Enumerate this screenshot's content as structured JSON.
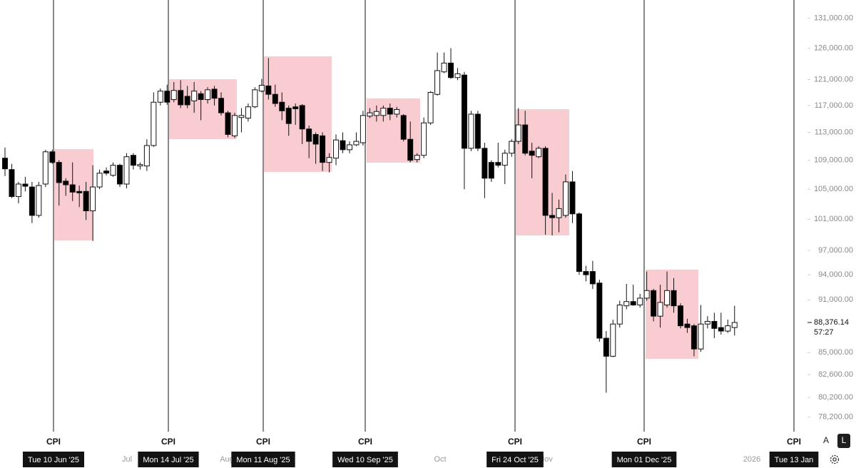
{
  "chart_data": {
    "type": "candlestick",
    "log_scale": true,
    "up_color": "#ffffff",
    "down_color": "#000000",
    "box_color": "#f7b6be",
    "categories": [
      null,
      null,
      null,
      null,
      null,
      null,
      null,
      null,
      null,
      null,
      null,
      null,
      null,
      null,
      null,
      null,
      null,
      null,
      null,
      null,
      null,
      null,
      null,
      null,
      null,
      null,
      null,
      null,
      null,
      null,
      null,
      null,
      null,
      null,
      null,
      null,
      null,
      null,
      null,
      null,
      null,
      null,
      null,
      null,
      null,
      null,
      null,
      null,
      null,
      null,
      null,
      null,
      null,
      null,
      null,
      null,
      null,
      null,
      null,
      null,
      null,
      null,
      null,
      null,
      null,
      null,
      null,
      null,
      null,
      null,
      null,
      null,
      null,
      null,
      null,
      null,
      null,
      null,
      null,
      null,
      null,
      null,
      null,
      null,
      null,
      null,
      null,
      null,
      null,
      null,
      null,
      null,
      null,
      null,
      null,
      null,
      null,
      null,
      null,
      null,
      null,
      null,
      null,
      null,
      null,
      null,
      null,
      null,
      null
    ],
    "open": [
      109300,
      107700,
      104000,
      105700,
      105300,
      101500,
      105700,
      110200,
      108700,
      106100,
      105600,
      104700,
      104700,
      102100,
      105300,
      107500,
      106900,
      108300,
      105700,
      109700,
      108200,
      108200,
      111100,
      117500,
      119200,
      117900,
      119300,
      118400,
      117700,
      118800,
      117900,
      119500,
      118100,
      115900,
      112500,
      115200,
      115100,
      116800,
      119200,
      120000,
      118700,
      117500,
      116600,
      116800,
      117000,
      113500,
      112700,
      112500,
      108700,
      109300,
      111800,
      110500,
      111200,
      111500,
      115400,
      115500,
      115500,
      116600,
      115700,
      115500,
      112000,
      109100,
      109700,
      114400,
      118700,
      122200,
      123600,
      121300,
      121700,
      110700,
      115700,
      110700,
      108700,
      108700,
      108300,
      110000,
      111700,
      114100,
      110300,
      109500,
      110700,
      101500,
      101200,
      101500,
      106000,
      101700,
      94400,
      94400,
      93000,
      86600,
      84600,
      88200,
      90300,
      90800,
      90400,
      91200,
      92100,
      89100,
      90400,
      92100,
      90300,
      88200,
      88000,
      85400,
      88200,
      88500,
      87800,
      87400,
      87800
    ],
    "high": [
      110800,
      108500,
      106000,
      106700,
      106000,
      106000,
      110500,
      110500,
      109000,
      106500,
      108700,
      105500,
      106000,
      108300,
      107700,
      108000,
      108700,
      108500,
      110000,
      110000,
      108700,
      112000,
      119000,
      119600,
      120200,
      120600,
      120900,
      120000,
      120600,
      119200,
      119800,
      120000,
      119000,
      116200,
      115900,
      116600,
      117300,
      119800,
      121100,
      124400,
      120200,
      119000,
      117000,
      117300,
      117200,
      114000,
      113000,
      113000,
      110000,
      112700,
      113000,
      111700,
      113000,
      116200,
      116600,
      117000,
      117000,
      117300,
      116800,
      115700,
      114600,
      110000,
      115200,
      119200,
      125300,
      125300,
      126000,
      122800,
      122200,
      116200,
      116200,
      111500,
      109000,
      111500,
      110500,
      112000,
      116600,
      116200,
      111500,
      111000,
      111000,
      104500,
      103600,
      107000,
      107500,
      101900,
      95100,
      95700,
      93400,
      87400,
      88700,
      90900,
      92900,
      92800,
      91700,
      94400,
      92300,
      92800,
      94400,
      93600,
      90600,
      88800,
      88200,
      90400,
      89100,
      89500,
      89500,
      88700,
      90300
    ],
    "low": [
      106800,
      103800,
      103100,
      104700,
      100500,
      101200,
      105300,
      108500,
      102800,
      104100,
      103400,
      102600,
      100900,
      98200,
      105000,
      106900,
      106700,
      105300,
      105100,
      107700,
      107700,
      107500,
      110900,
      117000,
      117100,
      117500,
      116600,
      116600,
      115900,
      114800,
      117300,
      117000,
      115500,
      112300,
      112200,
      113000,
      114600,
      116600,
      119000,
      117900,
      116800,
      114800,
      112500,
      114100,
      111300,
      109300,
      108500,
      107500,
      107300,
      108300,
      110000,
      110000,
      111000,
      111100,
      115100,
      114600,
      114600,
      114800,
      115200,
      111700,
      108700,
      108700,
      109300,
      114100,
      118500,
      122000,
      121100,
      120900,
      105000,
      110300,
      110300,
      103800,
      106000,
      108000,
      105700,
      109500,
      111300,
      109700,
      106500,
      109300,
      99000,
      98900,
      99300,
      101200,
      100500,
      94000,
      93200,
      92300,
      86200,
      80700,
      84500,
      87800,
      89900,
      90300,
      90100,
      90900,
      88500,
      87800,
      90100,
      89500,
      87700,
      87200,
      84600,
      85100,
      87700,
      86600,
      87000,
      87200,
      86900
    ],
    "close": [
      107800,
      104000,
      105700,
      105400,
      101500,
      105500,
      110200,
      108700,
      105900,
      105600,
      104600,
      104500,
      102100,
      105300,
      107200,
      107200,
      108300,
      105700,
      109500,
      108300,
      108400,
      111100,
      117500,
      119200,
      117500,
      119300,
      117100,
      117100,
      119200,
      117900,
      119400,
      118100,
      115900,
      112700,
      115500,
      115500,
      116800,
      119400,
      120100,
      118700,
      117300,
      116200,
      114300,
      116500,
      113500,
      111700,
      111300,
      108700,
      109400,
      111900,
      110500,
      111200,
      111700,
      115500,
      115900,
      116100,
      116600,
      115700,
      116400,
      112000,
      109000,
      109700,
      114400,
      119000,
      122400,
      123600,
      121300,
      121900,
      110700,
      115700,
      110700,
      106500,
      106500,
      108300,
      110000,
      111700,
      114100,
      110000,
      109700,
      110700,
      101500,
      101200,
      102400,
      106000,
      101700,
      94400,
      94000,
      92900,
      86600,
      84600,
      88200,
      90400,
      90800,
      90400,
      91200,
      92100,
      89100,
      90700,
      92100,
      90300,
      88000,
      87800,
      85400,
      88200,
      88500,
      87700,
      87400,
      88000,
      88376.14
    ],
    "ylim": [
      77100,
      134100
    ],
    "yticks": [
      {
        "value": 131000,
        "label": "131,000.00"
      },
      {
        "value": 126000,
        "label": "126,000.00"
      },
      {
        "value": 121000,
        "label": "121,000.00"
      },
      {
        "value": 117000,
        "label": "117,000.00"
      },
      {
        "value": 113000,
        "label": "113,000.00"
      },
      {
        "value": 109000,
        "label": "109,000.00"
      },
      {
        "value": 105000,
        "label": "105,000.00"
      },
      {
        "value": 101000,
        "label": "101,000.00"
      },
      {
        "value": 97000,
        "label": "97,000.00"
      },
      {
        "value": 94000,
        "label": "94,000.00"
      },
      {
        "value": 91000,
        "label": "91,000.00"
      },
      {
        "value": 85000,
        "label": "85,000.00"
      },
      {
        "value": 82600,
        "label": "82,600.00"
      },
      {
        "value": 80200,
        "label": "80,200.00"
      },
      {
        "value": 78200,
        "label": "78,200.00"
      }
    ],
    "last_price": {
      "value": 88376.14,
      "label": "88,376.14"
    },
    "countdown": "57:27",
    "x_labels": [
      "Jul",
      "Aug",
      "Oct",
      "Nov",
      "2026"
    ],
    "events": [
      {
        "label": "CPI",
        "date": "Tue 10 Jun '25"
      },
      {
        "label": "CPI",
        "date": "Mon 14 Jul '25"
      },
      {
        "label": "CPI",
        "date": "Mon 11 Aug '25"
      },
      {
        "label": "CPI",
        "date": "Wed 10 Sep '25"
      },
      {
        "label": "CPI",
        "date": "Fri 24 Oct '25"
      },
      {
        "label": "CPI",
        "date": "Mon 01 Dec '25"
      },
      {
        "label": "CPI",
        "date": "Tue 13 Jan"
      }
    ],
    "controls": [
      "A",
      "L"
    ]
  }
}
